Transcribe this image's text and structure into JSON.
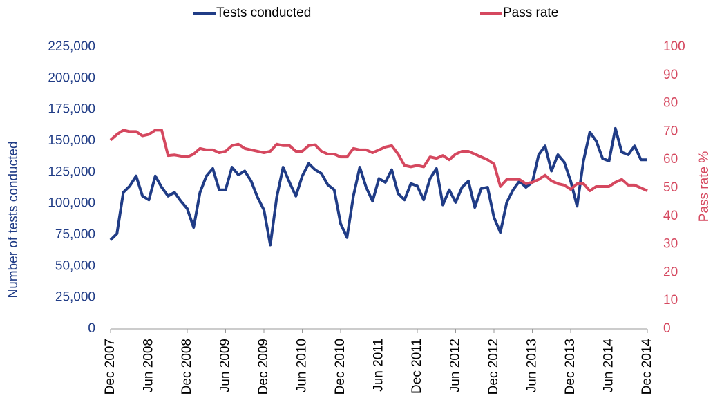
{
  "chart_data": {
    "type": "line",
    "categories": [
      "Dec 2007",
      null,
      null,
      null,
      null,
      null,
      "Jun 2008",
      null,
      null,
      null,
      null,
      null,
      "Dec 2008",
      null,
      null,
      null,
      null,
      null,
      "Jun 2009",
      null,
      null,
      null,
      null,
      null,
      "Dec 2009",
      null,
      null,
      null,
      null,
      null,
      "Jun 2010",
      null,
      null,
      null,
      null,
      null,
      "Dec 2010",
      null,
      null,
      null,
      null,
      null,
      "Jun 2011",
      null,
      null,
      null,
      null,
      null,
      "Dec 2011",
      null,
      null,
      null,
      null,
      null,
      "Jun 2012",
      null,
      null,
      null,
      null,
      null,
      "Dec 2012",
      null,
      null,
      null,
      null,
      null,
      "Jun 2013",
      null,
      null,
      null,
      null,
      null,
      "Dec 2013",
      null,
      null,
      null,
      null,
      null,
      "Jun 2014",
      null,
      null,
      null,
      null,
      null,
      "Dec 2014"
    ],
    "series": [
      {
        "name": "Tests conducted",
        "color": "#203c86",
        "axis": "y",
        "values": [
          71000,
          76000,
          109000,
          114000,
          122000,
          106000,
          103000,
          122000,
          113000,
          106000,
          109000,
          102000,
          96000,
          81000,
          109000,
          122000,
          128000,
          111000,
          111000,
          129000,
          123000,
          126000,
          118000,
          105000,
          95000,
          67000,
          105000,
          129000,
          117000,
          106000,
          122000,
          132000,
          127000,
          124000,
          115000,
          111000,
          84000,
          73000,
          106000,
          129000,
          113000,
          102000,
          120000,
          117000,
          127000,
          108000,
          103000,
          116000,
          114000,
          103000,
          120000,
          128000,
          99000,
          111000,
          101000,
          113000,
          118000,
          97000,
          112000,
          113000,
          89000,
          77000,
          101000,
          111000,
          118000,
          113000,
          117000,
          139000,
          146000,
          126000,
          139000,
          133000,
          118000,
          98000,
          134000,
          157000,
          150000,
          136000,
          134000,
          160000,
          141000,
          139000,
          146000,
          135000,
          135000
        ]
      },
      {
        "name": "Pass rate",
        "color": "#d5485f",
        "axis": "y2",
        "values": [
          67,
          69,
          70.5,
          70,
          70,
          68.5,
          69,
          70.5,
          70.5,
          61.5,
          61.7,
          61.3,
          61,
          62,
          64,
          63.5,
          63.5,
          62.5,
          63,
          65,
          65.5,
          64,
          63.5,
          63,
          62.5,
          63,
          65.5,
          65,
          65,
          63,
          63,
          65,
          65.3,
          63,
          62,
          62,
          61,
          61,
          64,
          63.5,
          63.5,
          62.5,
          63.5,
          64.5,
          65,
          62,
          58,
          57.5,
          58,
          57.5,
          61,
          60.5,
          61.5,
          60,
          62,
          63,
          63,
          62,
          61,
          60,
          58.5,
          50.5,
          53,
          53,
          53,
          51.5,
          52,
          53,
          54.5,
          52.5,
          51.5,
          51,
          49.5,
          51.5,
          51.5,
          49,
          50.5,
          50.5,
          50.5,
          52,
          53,
          51,
          51,
          50,
          49
        ]
      }
    ],
    "y_label": "Number of tests conducted",
    "y2_label": "Pass rate %",
    "ylim": [
      0,
      225000
    ],
    "yticks": [
      0,
      {
        "value": 25000,
        "label": "25,000"
      },
      {
        "value": 50000,
        "label": "50,000"
      },
      {
        "value": 75000,
        "label": "75,000"
      },
      {
        "value": 100000,
        "label": "100,000"
      },
      {
        "value": 125000,
        "label": "125,000"
      },
      {
        "value": 150000,
        "label": "150,000"
      },
      {
        "value": 175000,
        "label": "175,000"
      },
      {
        "value": 200000,
        "label": "200,000"
      },
      {
        "value": 225000,
        "label": "225,000"
      }
    ],
    "y2lim": [
      0,
      100
    ],
    "y2ticks": [
      0,
      10,
      20,
      30,
      40,
      50,
      60,
      70,
      80,
      90,
      100
    ],
    "legend": "top",
    "grid": false
  }
}
